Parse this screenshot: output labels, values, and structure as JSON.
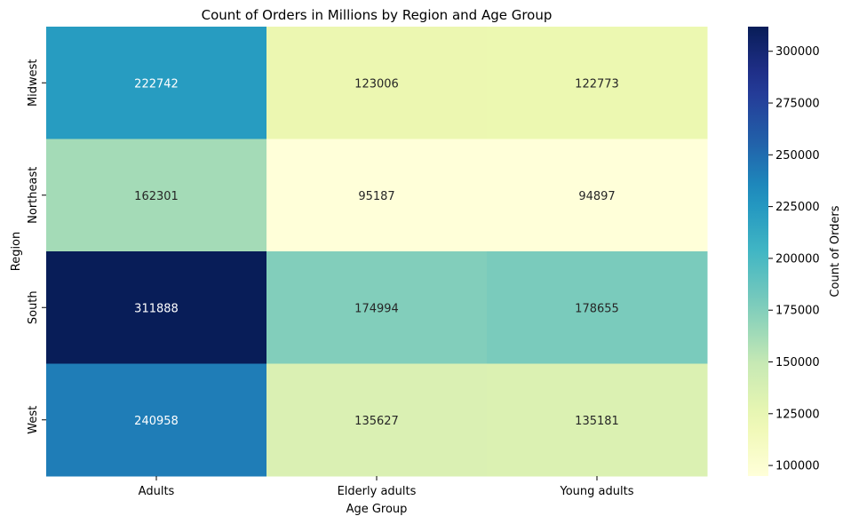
{
  "chart_data": {
    "type": "heatmap",
    "title": "Count of Orders in Millions by Region and Age Group",
    "xlabel": "Age Group",
    "ylabel": "Region",
    "x_categories": [
      "Adults",
      "Elderly adults",
      "Young adults"
    ],
    "y_categories": [
      "Midwest",
      "Northeast",
      "South",
      "West"
    ],
    "values": [
      [
        222742,
        123006,
        122773
      ],
      [
        162301,
        95187,
        94897
      ],
      [
        311888,
        174994,
        178655
      ],
      [
        240958,
        135627,
        135181
      ]
    ],
    "value_labels": [
      [
        "222742",
        "123006",
        "122773"
      ],
      [
        "162301",
        "95187",
        "94897"
      ],
      [
        "311888",
        "174994",
        "178655"
      ],
      [
        "240958",
        "135627",
        "135181"
      ]
    ],
    "colormap": "YlGnBu",
    "colorbar": {
      "label": "Count of Orders",
      "range": [
        94897,
        311888
      ],
      "ticks": [
        100000,
        125000,
        150000,
        175000,
        200000,
        225000,
        250000,
        275000,
        300000
      ],
      "tick_labels": [
        "100000",
        "125000",
        "150000",
        "175000",
        "200000",
        "225000",
        "250000",
        "275000",
        "300000"
      ]
    },
    "grid": false,
    "legend_position": "right"
  }
}
